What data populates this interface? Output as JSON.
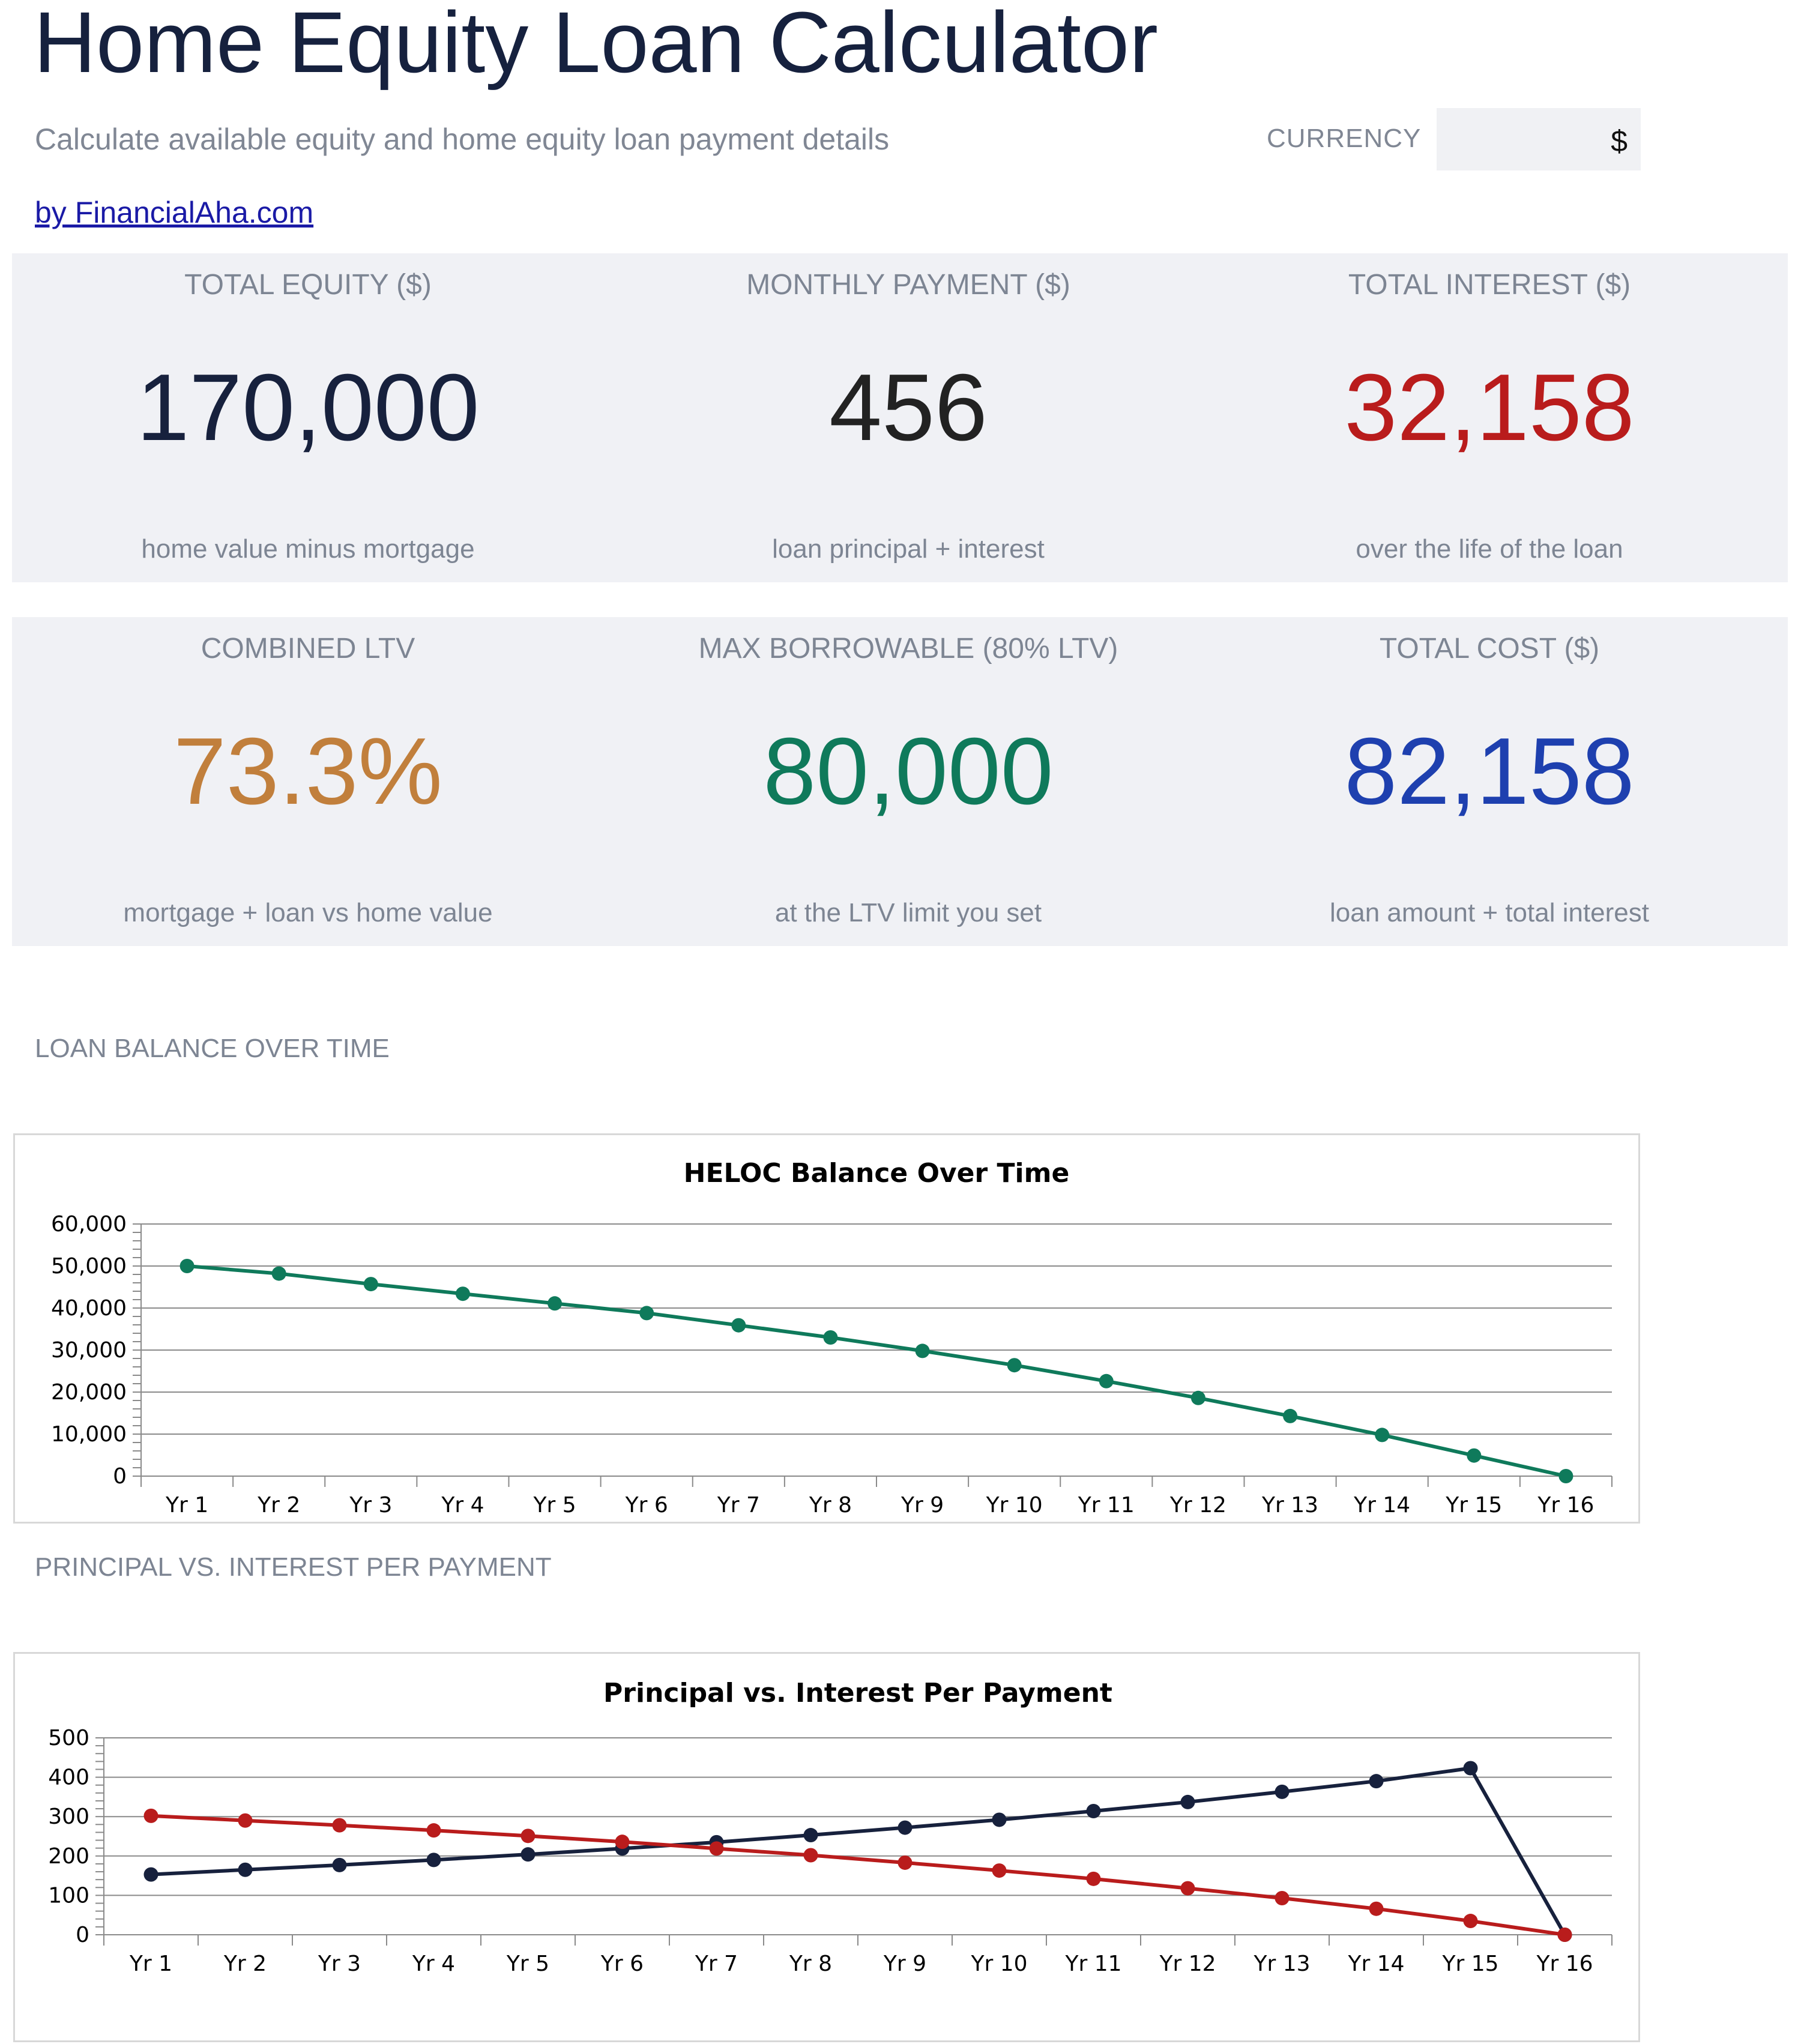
{
  "header": {
    "title": "Home Equity Loan Calculator",
    "subtitle": "Calculate available equity and home equity loan payment details",
    "byline": "by FinancialAha.com"
  },
  "currency": {
    "label": "CURRENCY",
    "value": "$"
  },
  "metrics_row1": [
    {
      "label": "TOTAL EQUITY ($)",
      "value": "170,000",
      "sub": "home value minus mortgage",
      "color": "#17213d"
    },
    {
      "label": "MONTHLY PAYMENT ($)",
      "value": "456",
      "sub": "loan principal + interest",
      "color": "#222222"
    },
    {
      "label": "TOTAL INTEREST ($)",
      "value": "32,158",
      "sub": "over the life of the loan",
      "color": "#b91c1c"
    }
  ],
  "metrics_row2": [
    {
      "label": "COMBINED LTV",
      "value": "73.3%",
      "sub": "mortgage + loan vs home value",
      "color": "#c17f3c"
    },
    {
      "label": "MAX BORROWABLE (80% LTV)",
      "value": "80,000",
      "sub": "at the LTV limit you set",
      "color": "#0f7a5b"
    },
    {
      "label": "TOTAL COST ($)",
      "value": "82,158",
      "sub": "loan amount + total interest",
      "color": "#1e40af"
    }
  ],
  "sections": {
    "balance": "LOAN BALANCE OVER TIME",
    "principal_interest": "PRINCIPAL VS. INTEREST PER PAYMENT"
  },
  "chart_data": [
    {
      "type": "line",
      "title": "HELOC Balance Over Time",
      "categories": [
        "Yr 1",
        "Yr 2",
        "Yr 3",
        "Yr 4",
        "Yr 5",
        "Yr 6",
        "Yr 7",
        "Yr 8",
        "Yr 9",
        "Yr 10",
        "Yr 11",
        "Yr 12",
        "Yr 13",
        "Yr 14",
        "Yr 15",
        "Yr 16"
      ],
      "y_ticks": [
        "0",
        "10,000",
        "20,000",
        "30,000",
        "40,000",
        "50,000",
        "60,000"
      ],
      "ylim": [
        0,
        60000
      ],
      "grid": true,
      "series": [
        {
          "values": [
            50000,
            48200,
            45700,
            43400,
            41100,
            38800,
            35900,
            33000,
            29800,
            26400,
            22600,
            18600,
            14300,
            9800,
            4900,
            0
          ],
          "color": "#0f7a5b"
        }
      ]
    },
    {
      "type": "line",
      "title": "Principal vs. Interest Per Payment",
      "categories": [
        "Yr 1",
        "Yr 2",
        "Yr 3",
        "Yr 4",
        "Yr 5",
        "Yr 6",
        "Yr 7",
        "Yr 8",
        "Yr 9",
        "Yr 10",
        "Yr 11",
        "Yr 12",
        "Yr 13",
        "Yr 14",
        "Yr 15",
        "Yr 16"
      ],
      "y_ticks": [
        "0",
        "100",
        "200",
        "300",
        "400",
        "500"
      ],
      "ylim": [
        0,
        500
      ],
      "grid": true,
      "series": [
        {
          "values": [
            153,
            165,
            177,
            190,
            204,
            219,
            235,
            253,
            272,
            292,
            314,
            337,
            363,
            390,
            423,
            0
          ],
          "color": "#17213d"
        },
        {
          "values": [
            302,
            290,
            278,
            265,
            251,
            236,
            219,
            202,
            183,
            163,
            142,
            118,
            93,
            66,
            35,
            0
          ],
          "color": "#b91c1c"
        }
      ]
    }
  ]
}
